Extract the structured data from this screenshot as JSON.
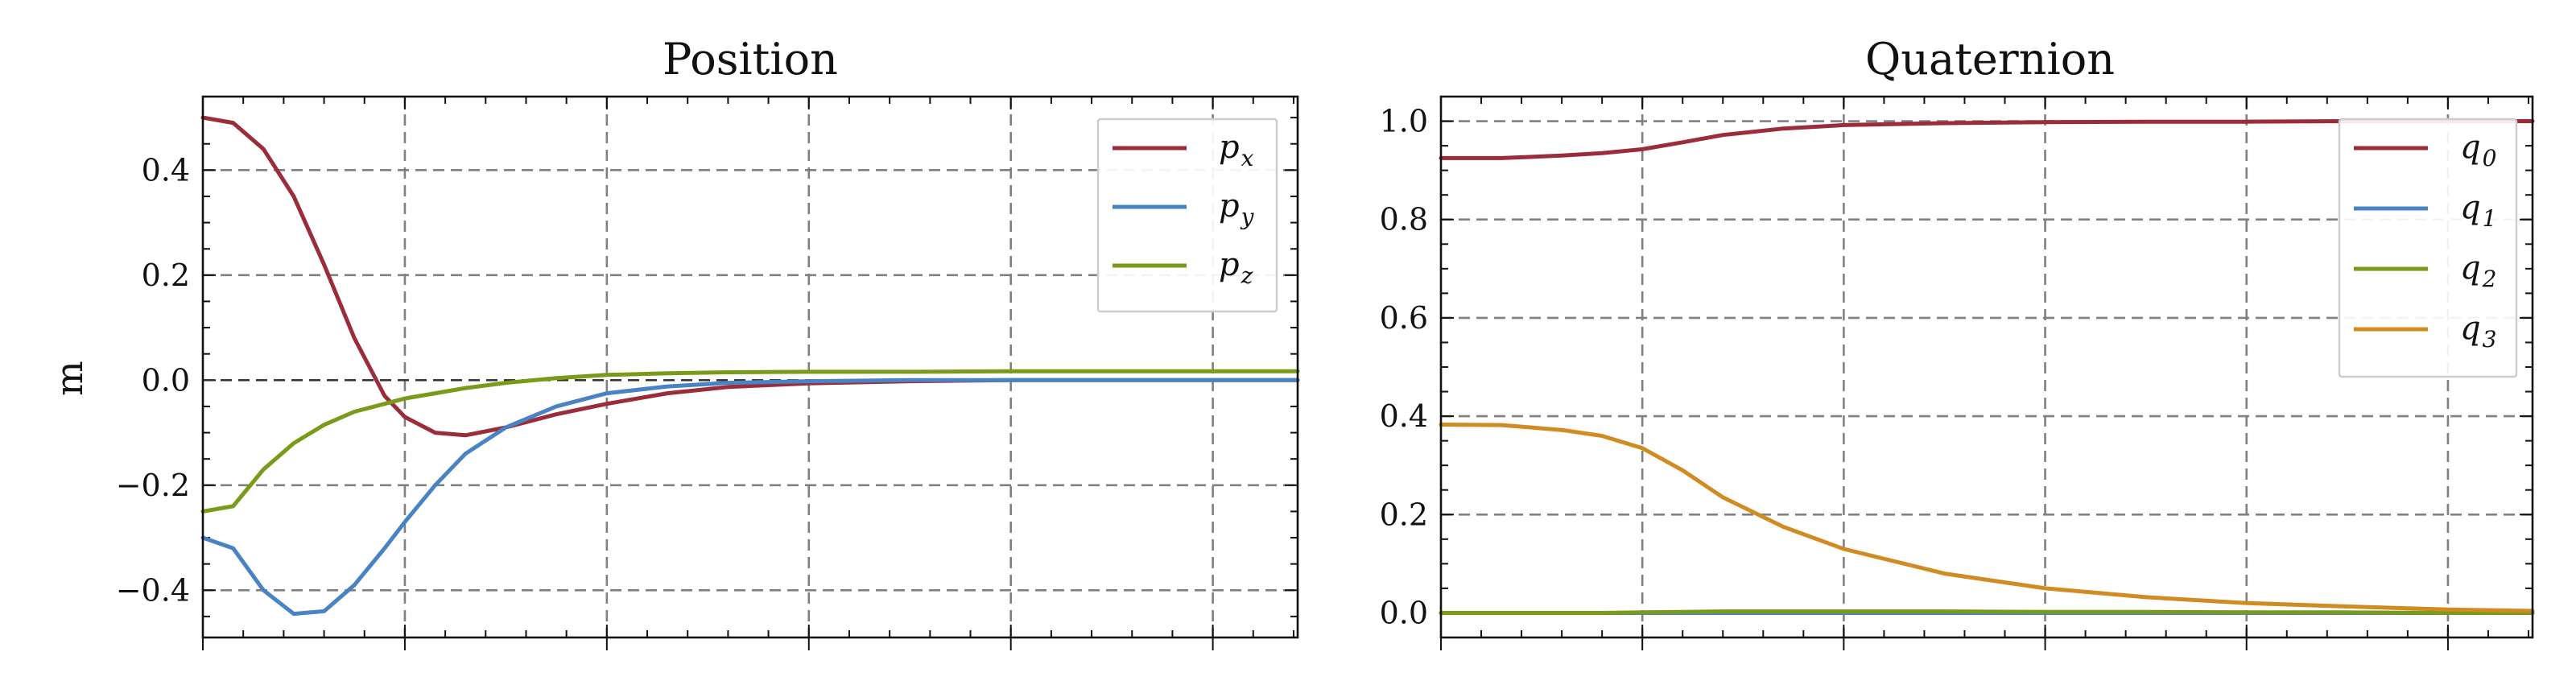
{
  "chart_data": [
    {
      "type": "line",
      "title": "Position",
      "ylabel": "m",
      "xlabel": "",
      "ylim": [
        -0.49,
        0.54
      ],
      "yticks": [
        -0.4,
        -0.2,
        0.0,
        0.2,
        0.4
      ],
      "ytick_labels": [
        "−0.4",
        "−0.2",
        "0.0",
        "0.2",
        "0.4"
      ],
      "xlim": [
        0,
        5.42
      ],
      "xticks": [
        0,
        1,
        2,
        3,
        4,
        5
      ],
      "xtick_labels": [],
      "grid": true,
      "legend_position": "top-right",
      "x": [
        0,
        0.15,
        0.3,
        0.45,
        0.6,
        0.75,
        0.9,
        1.0,
        1.15,
        1.3,
        1.5,
        1.75,
        2.0,
        2.3,
        2.6,
        3.0,
        3.5,
        4.0,
        4.5,
        5.0,
        5.42
      ],
      "series": [
        {
          "name": "p",
          "subscript": "x",
          "color": "#9b2d3b",
          "values": [
            0.5,
            0.49,
            0.44,
            0.35,
            0.22,
            0.08,
            -0.03,
            -0.07,
            -0.1,
            -0.105,
            -0.09,
            -0.065,
            -0.045,
            -0.025,
            -0.013,
            -0.006,
            -0.002,
            0.0,
            0.0,
            0.0,
            0.0
          ]
        },
        {
          "name": "p",
          "subscript": "y",
          "color": "#4a83c4",
          "values": [
            -0.3,
            -0.32,
            -0.4,
            -0.445,
            -0.44,
            -0.39,
            -0.32,
            -0.27,
            -0.2,
            -0.14,
            -0.09,
            -0.05,
            -0.025,
            -0.012,
            -0.005,
            -0.002,
            0.0,
            0.0,
            0.0,
            0.0,
            0.0
          ]
        },
        {
          "name": "p",
          "subscript": "z",
          "color": "#7a9a1a",
          "values": [
            -0.25,
            -0.24,
            -0.17,
            -0.12,
            -0.085,
            -0.06,
            -0.045,
            -0.035,
            -0.025,
            -0.015,
            -0.005,
            0.004,
            0.01,
            0.013,
            0.015,
            0.016,
            0.016,
            0.017,
            0.017,
            0.017,
            0.017
          ]
        }
      ]
    },
    {
      "type": "line",
      "title": "Quaternion",
      "ylabel": "",
      "xlabel": "",
      "ylim": [
        -0.05,
        1.05
      ],
      "yticks": [
        0.0,
        0.2,
        0.4,
        0.6,
        0.8,
        1.0
      ],
      "ytick_labels": [
        "0.0",
        "0.2",
        "0.4",
        "0.6",
        "0.8",
        "1.0"
      ],
      "xlim": [
        0,
        5.42
      ],
      "xticks": [
        0,
        1,
        2,
        3,
        4,
        5
      ],
      "xtick_labels": [],
      "grid": true,
      "legend_position": "top-right",
      "x": [
        0,
        0.3,
        0.6,
        0.8,
        1.0,
        1.2,
        1.4,
        1.7,
        2.0,
        2.5,
        3.0,
        3.5,
        4.0,
        4.5,
        5.0,
        5.42
      ],
      "series": [
        {
          "name": "q",
          "subscript": "0",
          "color": "#9b2d3b",
          "values": [
            0.925,
            0.925,
            0.93,
            0.935,
            0.943,
            0.957,
            0.972,
            0.985,
            0.992,
            0.996,
            0.998,
            0.999,
            0.999,
            1.0,
            1.0,
            1.0
          ]
        },
        {
          "name": "q",
          "subscript": "1",
          "color": "#4a83c4",
          "values": [
            0.0,
            0.0,
            0.0,
            0.0,
            0.0,
            0.0,
            0.0,
            0.0,
            0.0,
            0.0,
            0.0,
            0.0,
            0.0,
            0.0,
            0.0,
            0.0
          ]
        },
        {
          "name": "q",
          "subscript": "2",
          "color": "#7a9a1a",
          "values": [
            0.0,
            0.0,
            0.0,
            0.0,
            0.001,
            0.002,
            0.003,
            0.003,
            0.003,
            0.003,
            0.002,
            0.002,
            0.001,
            0.001,
            0.0,
            0.0
          ]
        },
        {
          "name": "q",
          "subscript": "3",
          "color": "#d08c22",
          "values": [
            0.383,
            0.382,
            0.372,
            0.36,
            0.335,
            0.29,
            0.235,
            0.175,
            0.13,
            0.08,
            0.05,
            0.032,
            0.02,
            0.013,
            0.007,
            0.004
          ]
        }
      ]
    }
  ]
}
